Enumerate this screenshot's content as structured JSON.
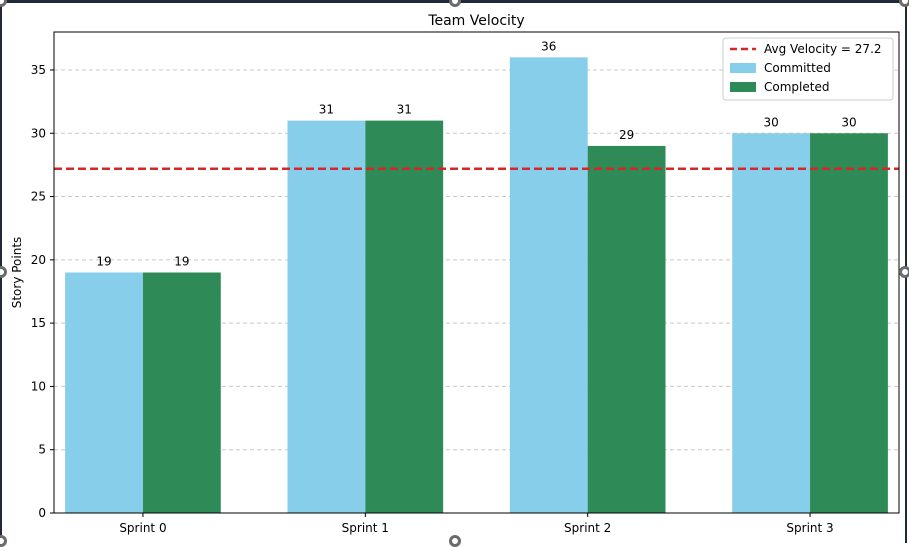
{
  "colors": {
    "committed": "#87ceeb",
    "completed": "#2e8b57",
    "average": "#d62728",
    "grid": "#c8c8c8",
    "frame": "#1f2937",
    "handle": "#6b6b6b"
  },
  "chart_data": {
    "type": "bar",
    "title": "Team Velocity",
    "xlabel": "",
    "ylabel": "Story Points",
    "categories": [
      "Sprint 0",
      "Sprint 1",
      "Sprint 2",
      "Sprint 3"
    ],
    "series": [
      {
        "name": "Committed",
        "values": [
          19,
          31,
          36,
          30
        ],
        "color": "#87ceeb"
      },
      {
        "name": "Completed",
        "values": [
          19,
          31,
          29,
          30
        ],
        "color": "#2e8b57"
      }
    ],
    "average_line": {
      "label": "Avg Velocity = 27.2",
      "value": 27.2,
      "style": "dashed",
      "color": "#d62728"
    },
    "ylim": [
      0,
      38
    ],
    "yticks": [
      0,
      5,
      10,
      15,
      20,
      25,
      30,
      35
    ],
    "grid": "y-dashed",
    "legend": "top-right",
    "data_labels": true
  }
}
